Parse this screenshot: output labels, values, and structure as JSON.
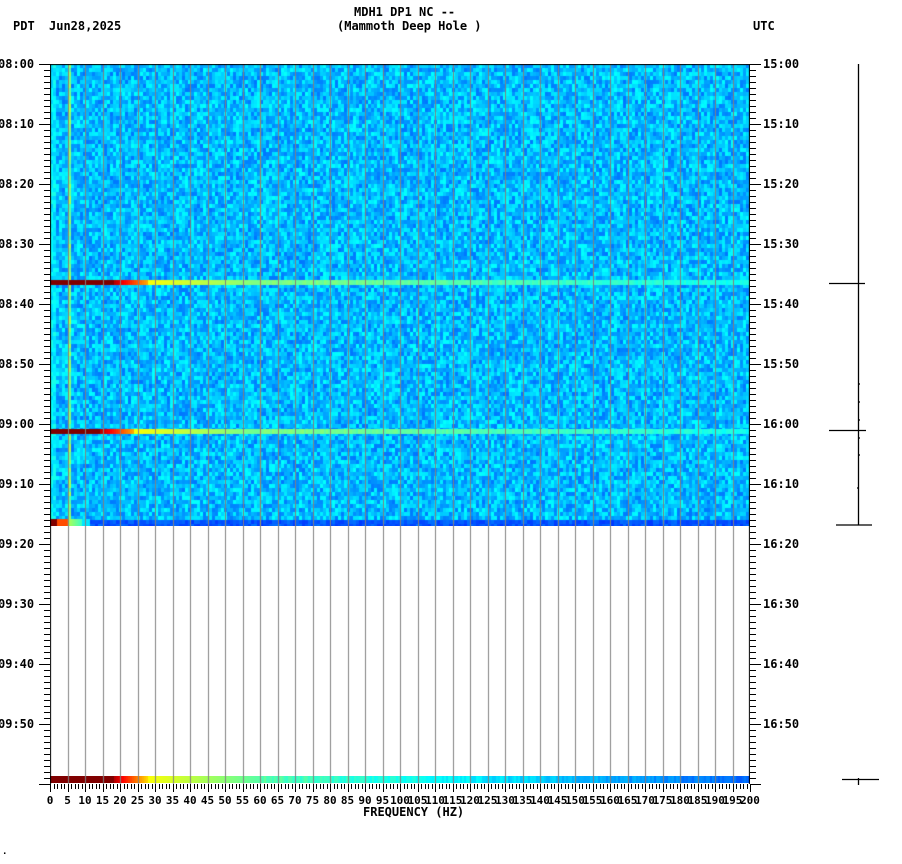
{
  "header": {
    "station_line": "MDH1 DP1 NC --",
    "location_line": "(Mammoth Deep Hole )",
    "left_timezone": "PDT",
    "date": "Jun28,2025",
    "right_timezone": "UTC"
  },
  "footer": {
    "mark": "."
  },
  "colors": {
    "background_noise": "#1a6cff",
    "grid": "#808080",
    "axis": "#000000",
    "hot": "#800000",
    "warm": "#ffff00",
    "cool": "#00ffff"
  },
  "chart_data": {
    "type": "heatmap",
    "title": "MDH1 DP1 NC -- (Mammoth Deep Hole )",
    "subtitle": "Jun28,2025",
    "xlabel": "FREQUENCY (HZ)",
    "ylabel_left": "PDT",
    "ylabel_right": "UTC",
    "xlim": [
      0,
      200
    ],
    "x_ticks": [
      "0",
      "5",
      "10",
      "15",
      "20",
      "25",
      "30",
      "35",
      "40",
      "45",
      "50",
      "55",
      "60",
      "65",
      "70",
      "75",
      "80",
      "85",
      "90",
      "95",
      "100",
      "105",
      "110",
      "115",
      "120",
      "125",
      "130",
      "135",
      "140",
      "145",
      "150",
      "155",
      "160",
      "165",
      "170",
      "175",
      "180",
      "185",
      "190",
      "195",
      "200"
    ],
    "y_ticks_left": [
      "08:00",
      "08:10",
      "08:20",
      "08:30",
      "08:40",
      "08:50",
      "09:00",
      "09:10",
      "09:20",
      "09:30",
      "09:40",
      "09:50"
    ],
    "y_ticks_right": [
      "15:00",
      "15:10",
      "15:20",
      "15:30",
      "15:40",
      "15:50",
      "16:00",
      "16:10",
      "16:20",
      "16:30",
      "16:40",
      "16:50"
    ],
    "time_range_pdt": [
      "08:00",
      "10:00"
    ],
    "data_end_pdt": "09:17",
    "grid": true,
    "grid_interval_hz": 5,
    "colormap": "jet",
    "features": [
      {
        "type": "horizontal_event",
        "time_pdt": "08:36",
        "note": "broadband energy, saturated red 0-20 Hz fading to yellow/cyan above 30 Hz"
      },
      {
        "type": "horizontal_event",
        "time_pdt": "09:01",
        "note": "broadband energy, saturated red 0-15 Hz fading to yellow/cyan above 30 Hz"
      },
      {
        "type": "horizontal_event",
        "time_pdt": "09:17",
        "note": "data end row, red at 0-5 Hz"
      },
      {
        "type": "vertical_line",
        "freq_hz": 5,
        "note": "persistent cyan/green spectral line"
      },
      {
        "type": "vertical_line",
        "freq_hz": 60,
        "note": "persistent 60 Hz line"
      }
    ],
    "colorbar_row": {
      "position": "bottom",
      "range_hz": [
        0,
        200
      ],
      "colors": "dark red at low freq through yellow, cyan, to blue at high freq"
    },
    "side_trace": {
      "x": "right",
      "event_marks_pdt": [
        "08:36",
        "09:01",
        "09:17"
      ]
    }
  }
}
